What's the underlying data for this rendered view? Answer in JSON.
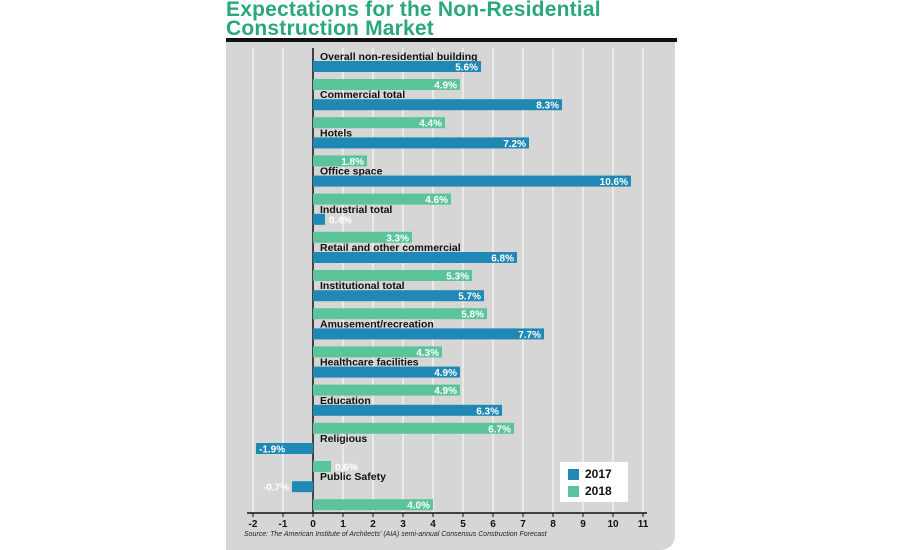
{
  "title": {
    "line1": "Expectations for the Non-Residential",
    "line2": "Construction Market"
  },
  "source": "Source: The American Institute of Architects' (AIA) semi-annual Consensus Construction Forecast",
  "colors": {
    "series_2017": "#1f88b4",
    "series_2018": "#5cc49a",
    "panel": "#d6d6d6",
    "grid": "#ffffff",
    "title": "#2aa87a"
  },
  "chart_data": {
    "type": "bar",
    "orientation": "horizontal",
    "categories": [
      "Overall non-residential building",
      "Commercial total",
      "Hotels",
      "Office space",
      "Industrial total",
      "Retail and other commercial",
      "Institutional total",
      "Amusement/recreation",
      "Healthcare facilities",
      "Education",
      "Religious",
      "Public Safety"
    ],
    "series": [
      {
        "name": "2017",
        "values": [
          5.6,
          8.3,
          7.2,
          10.6,
          0.4,
          6.8,
          5.7,
          7.7,
          4.9,
          6.3,
          -1.9,
          -0.7
        ],
        "labels": [
          "5.6%",
          "8.3%",
          "7.2%",
          "10.6%",
          "0.4%",
          "6.8%",
          "5.7%",
          "7.7%",
          "4.9%",
          "6.3%",
          "-1.9%",
          "-0.7%"
        ]
      },
      {
        "name": "2018",
        "values": [
          4.9,
          4.4,
          1.8,
          4.6,
          3.3,
          5.3,
          5.8,
          4.3,
          4.9,
          6.7,
          0.6,
          4.0
        ],
        "labels": [
          "4.9%",
          "4.4%",
          "1.8%",
          "4.6%",
          "3.3%",
          "5.3%",
          "5.8%",
          "4.3%",
          "4.9%",
          "6.7%",
          "0.6%",
          "4.0%"
        ]
      }
    ],
    "xlim": [
      -2,
      11
    ],
    "xticks": [
      "-2",
      "-1",
      "0",
      "1",
      "2",
      "3",
      "4",
      "5",
      "6",
      "7",
      "8",
      "9",
      "10",
      "11"
    ],
    "xlabel": "",
    "ylabel": "",
    "grid": true,
    "legend_position": "bottom-right"
  }
}
